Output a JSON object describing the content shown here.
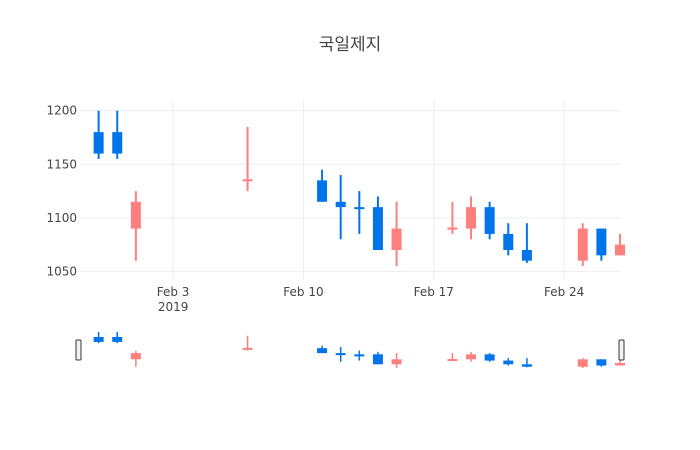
{
  "chart_data": {
    "type": "candlestick",
    "title": "국일제지",
    "xlabel": "",
    "ylabel": "",
    "ylim": [
      1042,
      1210
    ],
    "xlim": [
      "2019-01-29",
      "2019-02-27"
    ],
    "y_ticks": [
      1050,
      1100,
      1150,
      1200
    ],
    "x_ticks": [
      {
        "date": "2019-02-03",
        "label": "Feb 3",
        "sublabel": "2019"
      },
      {
        "date": "2019-02-10",
        "label": "Feb 10",
        "sublabel": ""
      },
      {
        "date": "2019-02-17",
        "label": "Feb 17",
        "sublabel": ""
      },
      {
        "date": "2019-02-24",
        "label": "Feb 24",
        "sublabel": ""
      }
    ],
    "grid": true,
    "increasing_color": "#ff7f7f",
    "decreasing_color": "#0074e8",
    "rangeslider": true,
    "candles": [
      {
        "date": "2019-01-30",
        "open": 1180,
        "high": 1200,
        "low": 1155,
        "close": 1160
      },
      {
        "date": "2019-01-31",
        "open": 1180,
        "high": 1200,
        "low": 1155,
        "close": 1160
      },
      {
        "date": "2019-02-01",
        "open": 1090,
        "high": 1125,
        "low": 1060,
        "close": 1115
      },
      {
        "date": "2019-02-07",
        "open": 1135,
        "high": 1185,
        "low": 1125,
        "close": 1136
      },
      {
        "date": "2019-02-11",
        "open": 1135,
        "high": 1145,
        "low": 1115,
        "close": 1115
      },
      {
        "date": "2019-02-12",
        "open": 1115,
        "high": 1140,
        "low": 1080,
        "close": 1110
      },
      {
        "date": "2019-02-13",
        "open": 1110,
        "high": 1125,
        "low": 1085,
        "close": 1109
      },
      {
        "date": "2019-02-14",
        "open": 1110,
        "high": 1120,
        "low": 1070,
        "close": 1070
      },
      {
        "date": "2019-02-15",
        "open": 1070,
        "high": 1115,
        "low": 1055,
        "close": 1090
      },
      {
        "date": "2019-02-18",
        "open": 1089,
        "high": 1115,
        "low": 1085,
        "close": 1091
      },
      {
        "date": "2019-02-19",
        "open": 1090,
        "high": 1120,
        "low": 1080,
        "close": 1110
      },
      {
        "date": "2019-02-20",
        "open": 1110,
        "high": 1115,
        "low": 1080,
        "close": 1085
      },
      {
        "date": "2019-02-21",
        "open": 1085,
        "high": 1095,
        "low": 1065,
        "close": 1070
      },
      {
        "date": "2019-02-22",
        "open": 1070,
        "high": 1095,
        "low": 1058,
        "close": 1060
      },
      {
        "date": "2019-02-25",
        "open": 1060,
        "high": 1095,
        "low": 1055,
        "close": 1090
      },
      {
        "date": "2019-02-26",
        "open": 1090,
        "high": 1090,
        "low": 1060,
        "close": 1065
      },
      {
        "date": "2019-02-27",
        "open": 1065,
        "high": 1085,
        "low": 1065,
        "close": 1075
      }
    ]
  }
}
